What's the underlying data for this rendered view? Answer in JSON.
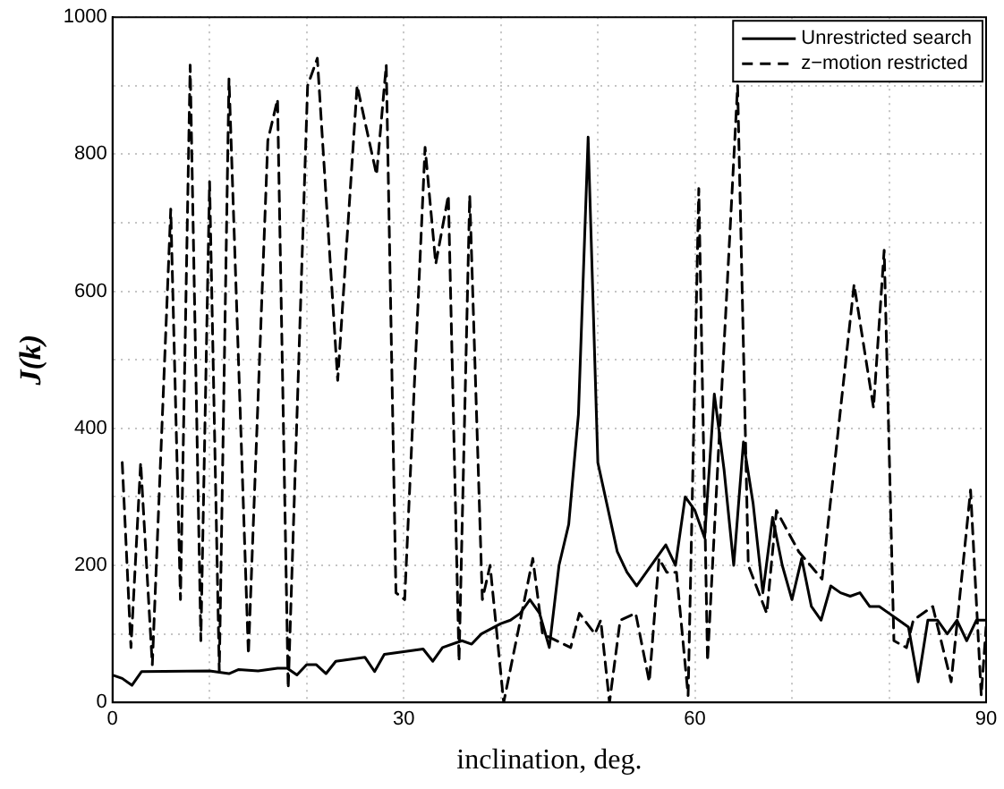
{
  "chart_data": {
    "type": "line",
    "xlabel": "inclination, deg.",
    "ylabel": "J(k)",
    "xlim": [
      0,
      90
    ],
    "xticks": [
      0,
      {
        "value": 10,
        "label": null
      },
      {
        "value": 20,
        "label": null
      },
      30,
      {
        "value": 40,
        "label": null
      },
      {
        "value": 50,
        "label": null
      },
      60,
      {
        "value": 70,
        "label": null
      },
      {
        "value": 80,
        "label": null
      },
      90
    ],
    "ylim": [
      0,
      1000
    ],
    "yticks": [
      0,
      {
        "value": 100,
        "label": null
      },
      200,
      {
        "value": 300,
        "label": null
      },
      400,
      {
        "value": 500,
        "label": null
      },
      600,
      {
        "value": 700,
        "label": null
      },
      800,
      {
        "value": 900,
        "label": null
      },
      1000
    ],
    "grid": true,
    "legend": "top right",
    "marker": "none",
    "series": [
      {
        "name": "Unrestricted search",
        "color": "#000000",
        "line_style": "solid",
        "x": [
          0,
          1,
          2,
          3,
          10,
          12,
          13,
          15,
          17,
          18,
          19,
          20,
          21,
          22,
          23,
          26,
          27,
          28,
          32,
          33,
          34,
          36,
          37,
          38,
          40,
          41,
          42,
          43,
          44,
          45,
          46,
          47,
          48,
          49,
          50,
          52,
          53,
          54,
          56,
          57,
          58,
          59,
          60,
          61,
          62,
          63,
          64,
          65,
          66,
          67,
          68,
          69,
          70,
          71,
          72,
          73,
          74,
          75,
          76,
          77,
          78,
          79,
          80,
          81,
          82,
          83,
          84,
          85,
          86,
          87,
          88,
          89,
          90
        ],
        "values": [
          40,
          35,
          25,
          45,
          46,
          42,
          48,
          46,
          50,
          50,
          40,
          55,
          55,
          42,
          60,
          66,
          45,
          70,
          78,
          60,
          80,
          90,
          85,
          100,
          115,
          120,
          130,
          150,
          130,
          80,
          200,
          260,
          420,
          825,
          350,
          220,
          190,
          170,
          210,
          230,
          200,
          300,
          280,
          240,
          450,
          340,
          200,
          380,
          290,
          160,
          270,
          200,
          150,
          210,
          140,
          120,
          170,
          160,
          155,
          160,
          140,
          140,
          130,
          120,
          110,
          30,
          120,
          120,
          100,
          120,
          90,
          120,
          120
        ]
      },
      {
        "name": "z−motion restricted",
        "color": "#000000",
        "line_style": "dashed",
        "x": [
          1,
          1.9,
          2.9,
          4.1,
          6,
          7,
          8,
          9.1,
          10,
          11,
          12,
          14,
          16,
          17,
          18.1,
          20.1,
          21.1,
          23.2,
          25.2,
          27.2,
          28.2,
          29.2,
          30.1,
          32.2,
          33.3,
          34.6,
          35.7,
          36.8,
          38.1,
          38.9,
          40.3,
          41.3,
          43.3,
          44.3,
          47.2,
          48.1,
          49.7,
          50.3,
          51.2,
          52.3,
          53.9,
          55.3,
          56.3,
          57.1,
          58.1,
          59.3,
          60.4,
          61.3,
          64.4,
          65.5,
          67.4,
          68.4,
          70.7,
          73.1,
          76.4,
          78.4,
          79.5,
          80.5,
          81.8,
          82.5,
          84.5,
          86.4,
          88.4,
          89.5,
          90
        ],
        "values": [
          350,
          80,
          350,
          55,
          720,
          150,
          930,
          90,
          760,
          45,
          910,
          70,
          820,
          880,
          20,
          900,
          940,
          470,
          900,
          770,
          930,
          160,
          150,
          810,
          640,
          740,
          60,
          740,
          150,
          200,
          0,
          70,
          210,
          100,
          80,
          130,
          100,
          120,
          0,
          120,
          130,
          30,
          210,
          190,
          190,
          10,
          750,
          60,
          900,
          200,
          130,
          280,
          220,
          180,
          610,
          430,
          660,
          90,
          80,
          120,
          140,
          30,
          310,
          10,
          110
        ]
      }
    ]
  }
}
